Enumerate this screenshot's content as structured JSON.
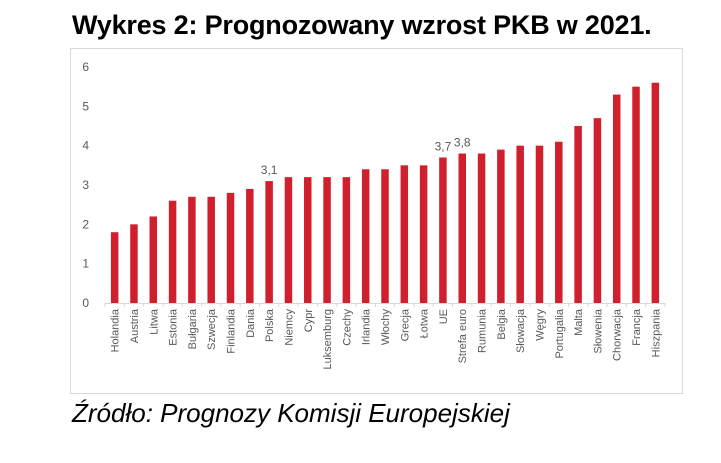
{
  "title": "Wykres 2: Prognozowany wzrost PKB w 2021.",
  "source": "Źródło: Prognozy Komisji Europejskiej",
  "colors": {
    "bar": "#d0202e",
    "axis": "#d9d9d9",
    "text": "#595959"
  },
  "chart_data": {
    "type": "bar",
    "categories": [
      "Holandia",
      "Austria",
      "Litwa",
      "Estonia",
      "Bułgaria",
      "Szwecja",
      "Finlandia",
      "Dania",
      "Polska",
      "Niemcy",
      "Cypr",
      "Luksemburg",
      "Czechy",
      "Irlandia",
      "Włochy",
      "Grecja",
      "Łotwa",
      "UE",
      "Strefa euro",
      "Rumunia",
      "Belgia",
      "Słowacja",
      "Węgry",
      "Portugalia",
      "Malta",
      "Słowenia",
      "Chorwacja",
      "Francja",
      "Hiszpania"
    ],
    "values": [
      1.8,
      2.0,
      2.2,
      2.6,
      2.7,
      2.7,
      2.8,
      2.9,
      3.1,
      3.2,
      3.2,
      3.2,
      3.2,
      3.4,
      3.4,
      3.5,
      3.5,
      3.7,
      3.8,
      3.8,
      3.9,
      4.0,
      4.0,
      4.1,
      4.5,
      4.7,
      5.3,
      5.5,
      5.6
    ],
    "data_labels": {
      "Polska": "3,1",
      "UE": "3,7",
      "Strefa euro": "3,8"
    },
    "ylim": [
      0,
      6
    ],
    "yticks": [
      "0",
      "1",
      "2",
      "3",
      "4",
      "5",
      "6"
    ],
    "grid": false,
    "xlabel": "",
    "ylabel": ""
  }
}
